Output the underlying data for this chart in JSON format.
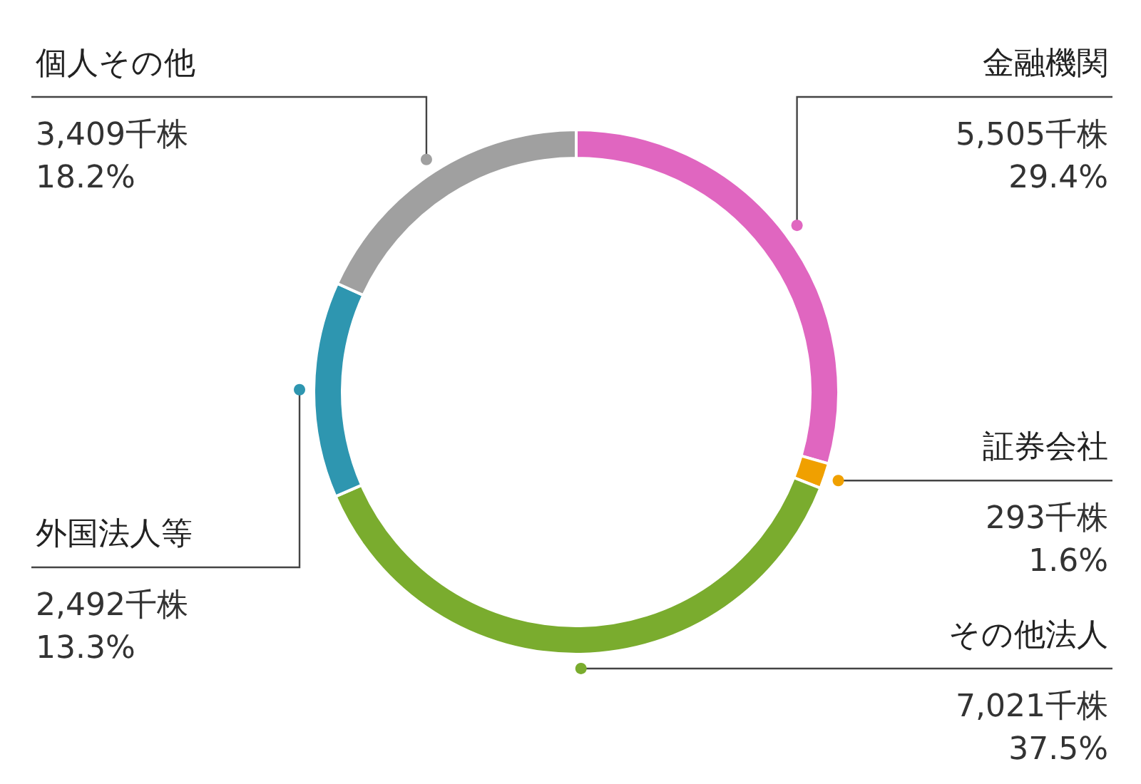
{
  "chart_data": {
    "type": "donut",
    "categories": [
      "金融機関",
      "証券会社",
      "その他法人",
      "外国法人等",
      "個人その他"
    ],
    "values": [
      5505,
      293,
      7021,
      2492,
      3409
    ],
    "colors": [
      "#e066c0",
      "#f0a000",
      "#7aac2e",
      "#2e96b0",
      "#a0a0a0"
    ],
    "value_labels": [
      "5,505千株\n29.4%",
      "293千株\n1.6%",
      "7,021千株\n37.5%",
      "2,492千株\n13.3%",
      "3,409千株\n18.2%"
    ],
    "legend": false
  }
}
